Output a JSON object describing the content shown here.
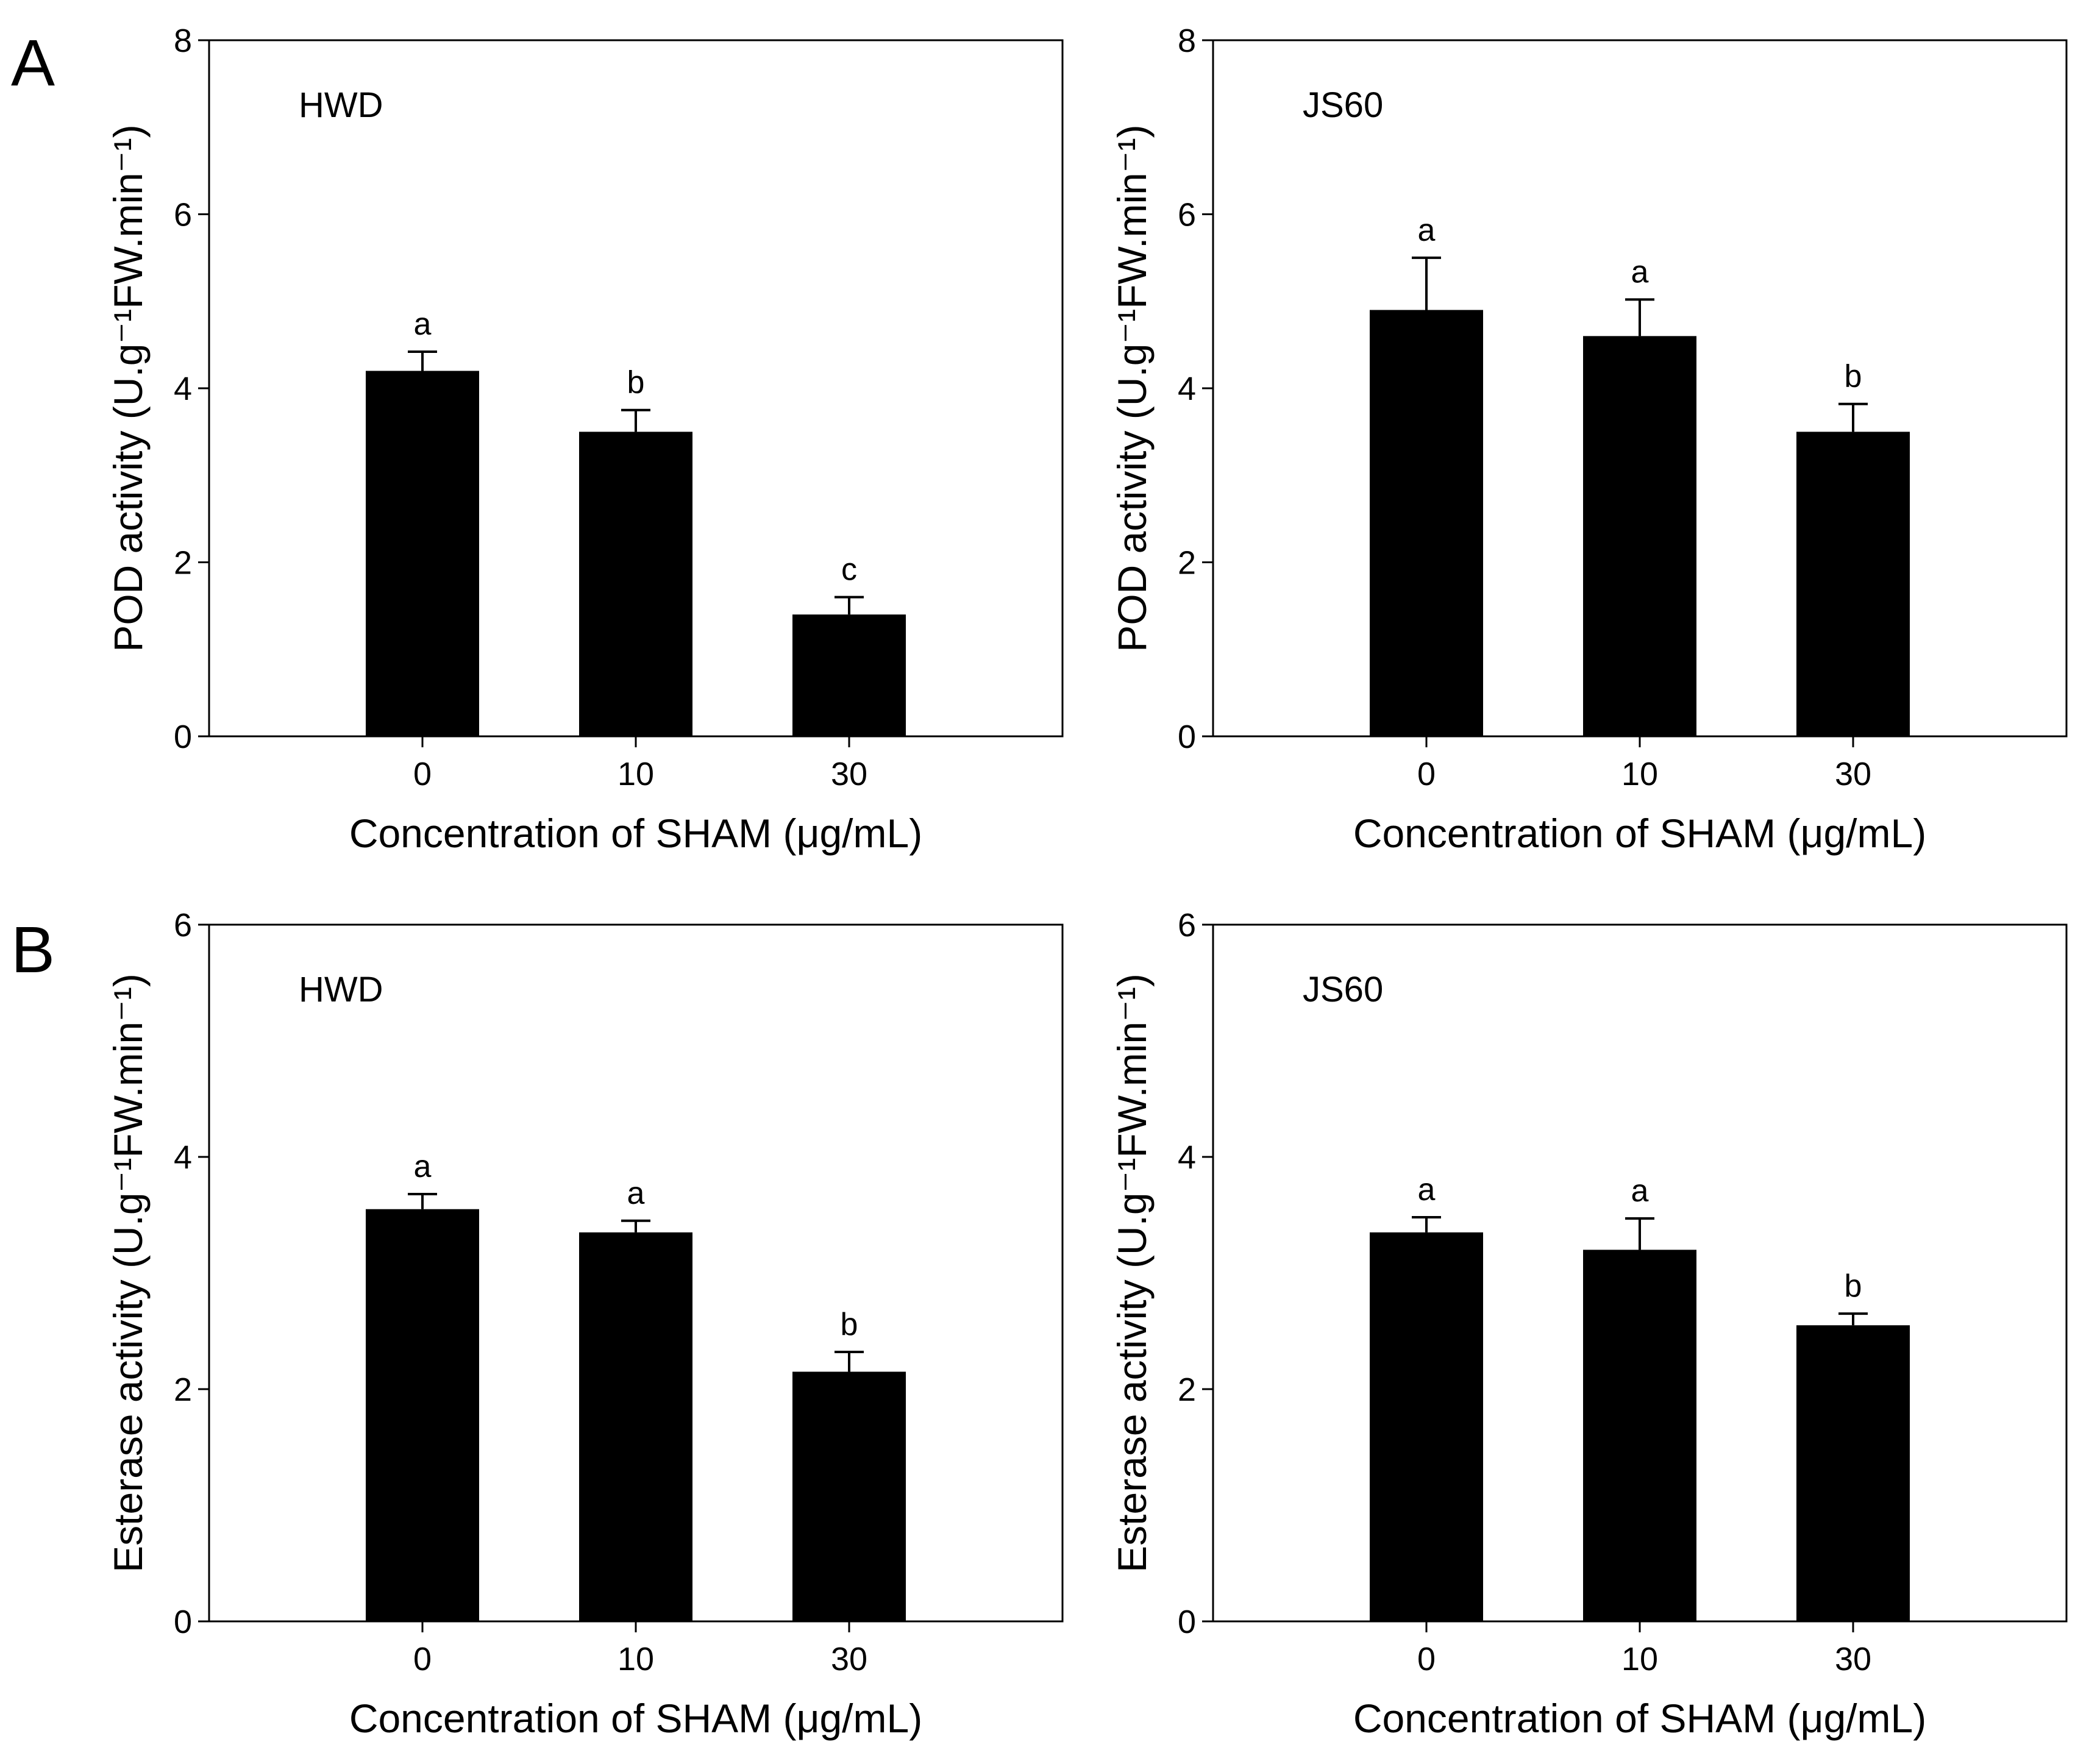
{
  "panels": [
    {
      "letter": "A"
    },
    {
      "letter": "B"
    }
  ],
  "chart_data": [
    {
      "type": "bar",
      "panel": "A",
      "inset_label": "HWD",
      "categories": [
        "0",
        "10",
        "30"
      ],
      "values": [
        4.2,
        3.5,
        1.4
      ],
      "errors": [
        0.22,
        0.25,
        0.2
      ],
      "significance": [
        "a",
        "b",
        "c"
      ],
      "xlabel": "Concentration of SHAM (μg/mL)",
      "ylabel": "POD activity (U.g⁻¹FW.min⁻¹)",
      "ylim": [
        0,
        8
      ],
      "yticks": [
        "0",
        "2",
        "4",
        "6",
        "8"
      ],
      "grid": false,
      "bar_color": "#000000"
    },
    {
      "type": "bar",
      "panel": "A",
      "inset_label": "JS60",
      "categories": [
        "0",
        "10",
        "30"
      ],
      "values": [
        4.9,
        4.6,
        3.5
      ],
      "errors": [
        0.6,
        0.42,
        0.32
      ],
      "significance": [
        "a",
        "a",
        "b"
      ],
      "xlabel": "Concentration of SHAM (μg/mL)",
      "ylabel": "POD activity (U.g⁻¹FW.min⁻¹)",
      "ylim": [
        0,
        8
      ],
      "yticks": [
        "0",
        "2",
        "4",
        "6",
        "8"
      ],
      "grid": false,
      "bar_color": "#000000"
    },
    {
      "type": "bar",
      "panel": "B",
      "inset_label": "HWD",
      "categories": [
        "0",
        "10",
        "30"
      ],
      "values": [
        3.55,
        3.35,
        2.15
      ],
      "errors": [
        0.13,
        0.1,
        0.17
      ],
      "significance": [
        "a",
        "a",
        "b"
      ],
      "xlabel": "Concentration of SHAM (μg/mL)",
      "ylabel": "Esterase activity (U.g⁻¹FW.min⁻¹)",
      "ylim": [
        0,
        6
      ],
      "yticks": [
        "0",
        "2",
        "4",
        "6"
      ],
      "grid": false,
      "bar_color": "#000000"
    },
    {
      "type": "bar",
      "panel": "B",
      "inset_label": "JS60",
      "categories": [
        "0",
        "10",
        "30"
      ],
      "values": [
        3.35,
        3.2,
        2.55
      ],
      "errors": [
        0.13,
        0.27,
        0.1
      ],
      "significance": [
        "a",
        "a",
        "b"
      ],
      "xlabel": "Concentration of SHAM (μg/mL)",
      "ylabel": "Esterase activity (U.g⁻¹FW.min⁻¹)",
      "ylim": [
        0,
        6
      ],
      "yticks": [
        "0",
        "2",
        "4",
        "6"
      ],
      "grid": false,
      "bar_color": "#000000"
    }
  ]
}
